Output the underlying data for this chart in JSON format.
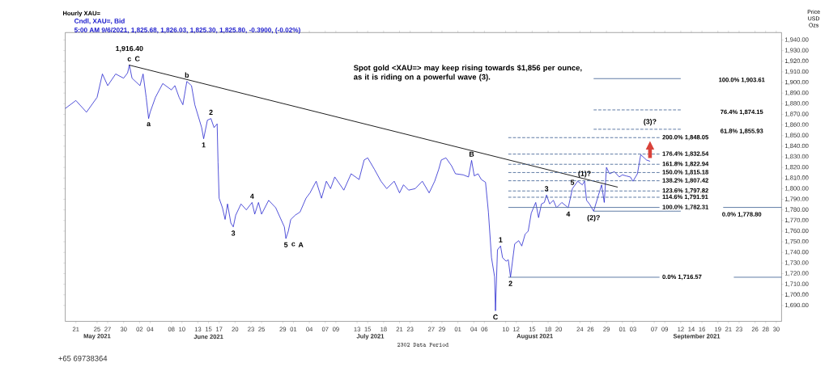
{
  "chart_data": {
    "type": "line",
    "title": "Hourly XAU=",
    "subtitle": "Cndl, XAU=, Bid",
    "ylabel": "Price USD Ozs",
    "xlim": [
      "2021-05-19",
      "2021-10-01"
    ],
    "ylim": [
      1675,
      1947
    ],
    "xticks": [
      {
        "value": "2021-05-21",
        "label": "21"
      },
      {
        "value": "2021-05-25",
        "label": "25"
      },
      {
        "value": "2021-05-27",
        "label": "27"
      },
      {
        "value": "2021-05-30",
        "label": "30"
      },
      {
        "value": "2021-06-02",
        "label": "02"
      },
      {
        "value": "2021-06-04",
        "label": "04"
      },
      {
        "value": "2021-06-08",
        "label": "08"
      },
      {
        "value": "2021-06-10",
        "label": "10"
      },
      {
        "value": "2021-06-13",
        "label": "13"
      },
      {
        "value": "2021-06-15",
        "label": "15"
      },
      {
        "value": "2021-06-17",
        "label": "17"
      },
      {
        "value": "2021-06-20",
        "label": "20"
      },
      {
        "value": "2021-06-23",
        "label": "23"
      },
      {
        "value": "2021-06-25",
        "label": "25"
      },
      {
        "value": "2021-06-29",
        "label": "29"
      },
      {
        "value": "2021-07-01",
        "label": "01"
      },
      {
        "value": "2021-07-04",
        "label": "04"
      },
      {
        "value": "2021-07-07",
        "label": "07"
      },
      {
        "value": "2021-07-09",
        "label": "09"
      },
      {
        "value": "2021-07-13",
        "label": "13"
      },
      {
        "value": "2021-07-15",
        "label": "15"
      },
      {
        "value": "2021-07-18",
        "label": "18"
      },
      {
        "value": "2021-07-21",
        "label": "21"
      },
      {
        "value": "2021-07-23",
        "label": "23"
      },
      {
        "value": "2021-07-27",
        "label": "27"
      },
      {
        "value": "2021-07-29",
        "label": "29"
      },
      {
        "value": "2021-08-01",
        "label": "01"
      },
      {
        "value": "2021-08-04",
        "label": "04"
      },
      {
        "value": "2021-08-06",
        "label": "06"
      },
      {
        "value": "2021-08-10",
        "label": "10"
      },
      {
        "value": "2021-08-12",
        "label": "12"
      },
      {
        "value": "2021-08-15",
        "label": "15"
      },
      {
        "value": "2021-08-18",
        "label": "18"
      },
      {
        "value": "2021-08-20",
        "label": "20"
      },
      {
        "value": "2021-08-24",
        "label": "24"
      },
      {
        "value": "2021-08-26",
        "label": "26"
      },
      {
        "value": "2021-08-29",
        "label": "29"
      },
      {
        "value": "2021-09-01",
        "label": "01"
      },
      {
        "value": "2021-09-03",
        "label": "03"
      },
      {
        "value": "2021-09-07",
        "label": "07"
      },
      {
        "value": "2021-09-09",
        "label": "09"
      },
      {
        "value": "2021-09-12",
        "label": "12"
      },
      {
        "value": "2021-09-14",
        "label": "14"
      },
      {
        "value": "2021-09-16",
        "label": "16"
      },
      {
        "value": "2021-09-19",
        "label": "19"
      },
      {
        "value": "2021-09-21",
        "label": "21"
      },
      {
        "value": "2021-09-23",
        "label": "23"
      },
      {
        "value": "2021-09-26",
        "label": "26"
      },
      {
        "value": "2021-09-28",
        "label": "28"
      },
      {
        "value": "2021-09-30",
        "label": "30"
      }
    ],
    "yticks": [
      {
        "value": 1690,
        "label": "1,690.00"
      },
      {
        "value": 1700,
        "label": "1,700.00"
      },
      {
        "value": 1710,
        "label": "1,710.00"
      },
      {
        "value": 1720,
        "label": "1,720.00"
      },
      {
        "value": 1730,
        "label": "1,730.00"
      },
      {
        "value": 1740,
        "label": "1,740.00"
      },
      {
        "value": 1750,
        "label": "1,750.00"
      },
      {
        "value": 1760,
        "label": "1,760.00"
      },
      {
        "value": 1770,
        "label": "1,770.00"
      },
      {
        "value": 1780,
        "label": "1,780.00"
      },
      {
        "value": 1790,
        "label": "1,790.00"
      },
      {
        "value": 1800,
        "label": "1,800.00"
      },
      {
        "value": 1810,
        "label": "1,810.00"
      },
      {
        "value": 1820,
        "label": "1,820.00"
      },
      {
        "value": 1830,
        "label": "1,830.00"
      },
      {
        "value": 1840,
        "label": "1,840.00"
      },
      {
        "value": 1850,
        "label": "1,850.00"
      },
      {
        "value": 1860,
        "label": "1,860.00"
      },
      {
        "value": 1870,
        "label": "1,870.00"
      },
      {
        "value": 1880,
        "label": "1,880.00"
      },
      {
        "value": 1890,
        "label": "1,890.00"
      },
      {
        "value": 1900,
        "label": "1,900.00"
      },
      {
        "value": 1910,
        "label": "1,910.00"
      },
      {
        "value": 1920,
        "label": "1,920.00"
      },
      {
        "value": 1930,
        "label": "1,930.00"
      },
      {
        "value": 1940,
        "label": "1,940.00"
      }
    ],
    "series": [
      {
        "color": "#1a1acc",
        "x": [
          "2021-05-19T00:00",
          "2021-05-21",
          "2021-05-23",
          "2021-05-25",
          "2021-05-26",
          "2021-05-27",
          "2021-05-28T12:00",
          "2021-05-30",
          "2021-05-30T18:00",
          "2021-05-31T02:00",
          "2021-05-31T14:00",
          "2021-06-02T02:00",
          "2021-06-02T16:00",
          "2021-06-03T06:00",
          "2021-06-03T17:00",
          "2021-06-04",
          "2021-06-05",
          "2021-06-06T09:00",
          "2021-06-08",
          "2021-06-08T16:00",
          "2021-06-09T11:00",
          "2021-06-10T04:00",
          "2021-06-10T22:00",
          "2021-06-11T19:00",
          "2021-06-12T10:00",
          "2021-06-13T17:00",
          "2021-06-14T02:00",
          "2021-06-14T19:00",
          "2021-06-15T11:00",
          "2021-06-16T01:00",
          "2021-06-16T15:00",
          "2021-06-16T19:00",
          "2021-06-17",
          "2021-06-17T15:00",
          "2021-06-18T03:00",
          "2021-06-18T14:00",
          "2021-06-19T05:00",
          "2021-06-19T16:00",
          "2021-06-20T03:00",
          "2021-06-21T03:00",
          "2021-06-22T03:00",
          "2021-06-23T05:00",
          "2021-06-23T17:00",
          "2021-06-24T10:00",
          "2021-06-25",
          "2021-06-26T08:00",
          "2021-06-27T16:00",
          "2021-06-29T07:00",
          "2021-06-29T14:00",
          "2021-06-30T01:00",
          "2021-06-30T12:00",
          "2021-07-01T08:00",
          "2021-07-02T06:00",
          "2021-07-03T09:00",
          "2021-07-04T03:00",
          "2021-07-05T07:00",
          "2021-07-06T07:00",
          "2021-07-07T05:00",
          "2021-07-08",
          "2021-07-08T19:00",
          "2021-07-10T12:00",
          "2021-07-11T21:00",
          "2021-07-13T09:00",
          "2021-07-14T08:00",
          "2021-07-15",
          "2021-07-16T07:00",
          "2021-07-17T12:00",
          "2021-07-18T14:00",
          "2021-07-20",
          "2021-07-21",
          "2021-07-21T18:00",
          "2021-07-22T17:00",
          "2021-07-23T23:00",
          "2021-07-25T07:00",
          "2021-07-26T14:00",
          "2021-07-27T15:00",
          "2021-07-28T09:00",
          "2021-07-28T21:00",
          "2021-07-29T18:00",
          "2021-07-30T19:00",
          "2021-07-31T13:00",
          "2021-08-02",
          "2021-08-03",
          "2021-08-03T14:00",
          "2021-08-04T02:00",
          "2021-08-04T19:00",
          "2021-08-05T10:00",
          "2021-08-06T05:00",
          "2021-08-06T18:00",
          "2021-08-07T08:00",
          "2021-08-07T22:00",
          "2021-08-08T02:00",
          "2021-08-08T11:00",
          "2021-08-09T01:00",
          "2021-08-09T10:00",
          "2021-08-10T02:00",
          "2021-08-10T12:00",
          "2021-08-10T22:00",
          "2021-08-11T07:00",
          "2021-08-11T17:00",
          "2021-08-12T11:00",
          "2021-08-13T01:00",
          "2021-08-13T16:00",
          "2021-08-14T06:00",
          "2021-08-14T20:00",
          "2021-08-15T16:00",
          "2021-08-16T05:00",
          "2021-08-16T18:00",
          "2021-08-17T07:00",
          "2021-08-17T17:00",
          "2021-08-18T07:00",
          "2021-08-19",
          "2021-08-19T14:00",
          "2021-08-20T14:00",
          "2021-08-21T19:00",
          "2021-08-22T14:00",
          "2021-08-23T14:00",
          "2021-08-24T11:00",
          "2021-08-24T21:00",
          "2021-08-25T06:00",
          "2021-08-25T19:00",
          "2021-08-26T14:00",
          "2021-08-27T12:00",
          "2021-08-28T02:00",
          "2021-08-28T14:00",
          "2021-08-29",
          "2021-08-29T14:00",
          "2021-08-30T12:00",
          "2021-08-31T10:00",
          "2021-09-01",
          "2021-09-01T17:00",
          "2021-09-02T12:00",
          "2021-09-03",
          "2021-09-03T20:00",
          "2021-09-04T11:00",
          "2021-09-05T13:00",
          "2021-09-06T05:00"
        ],
        "values": [
          1875.5,
          1883,
          1872,
          1886,
          1908,
          1897,
          1908,
          1904,
          1909,
          1916.4,
          1904,
          1897,
          1908,
          1886,
          1866,
          1872,
          1886,
          1899,
          1893,
          1897,
          1886,
          1879,
          1901,
          1897,
          1879,
          1857.5,
          1847,
          1864.5,
          1866,
          1857.5,
          1861,
          1825,
          1791,
          1782,
          1771,
          1785.6,
          1767.6,
          1764,
          1775,
          1785.6,
          1780,
          1787,
          1776,
          1787,
          1776,
          1789,
          1782,
          1764,
          1753,
          1760,
          1771,
          1775,
          1778,
          1791,
          1796,
          1807,
          1791,
          1807,
          1800,
          1811,
          1798.6,
          1814,
          1808.6,
          1827,
          1829,
          1818,
          1807,
          1800,
          1807,
          1796,
          1803.6,
          1798.6,
          1800,
          1807,
          1796,
          1807,
          1818,
          1827,
          1829,
          1821.6,
          1814,
          1813,
          1811,
          1826.6,
          1812,
          1814,
          1808.6,
          1806,
          1778,
          1735,
          1717,
          1685,
          1742.4,
          1746,
          1735,
          1731.7,
          1733,
          1716.6,
          1731.7,
          1748,
          1751,
          1746,
          1757,
          1760,
          1777,
          1787,
          1772.7,
          1785.6,
          1787,
          1794,
          1785.6,
          1789,
          1782,
          1787,
          1782,
          1800,
          1807,
          1803.6,
          1807,
          1789,
          1785.6,
          1778.8,
          1794,
          1803.6,
          1787,
          1820,
          1814,
          1816,
          1811,
          1813,
          1812,
          1811,
          1807,
          1814,
          1832,
          1827,
          1825.8
        ]
      },
      {
        "color": "#000000",
        "x": [
          "2021-05-31T00:00",
          "2021-08-31T03:00"
        ],
        "values": [
          1916.4,
          1801.4
        ]
      },
      {
        "color": "#4a6a9a",
        "line_style": "dashed",
        "x": [
          "2021-08-10T12:00",
          "2021-09-08"
        ],
        "values": [
          1848.05,
          1848.05
        ]
      },
      {
        "color": "#4a6a9a",
        "line_style": "dashed",
        "x": [
          "2021-08-10T12:00",
          "2021-09-08"
        ],
        "values": [
          1832.54,
          1832.54
        ]
      },
      {
        "color": "#4a6a9a",
        "line_style": "dashed",
        "x": [
          "2021-08-10T12:00",
          "2021-09-08"
        ],
        "values": [
          1822.94,
          1822.94
        ]
      },
      {
        "color": "#4a6a9a",
        "line_style": "dashed",
        "x": [
          "2021-08-10T12:00",
          "2021-09-08"
        ],
        "values": [
          1815.18,
          1815.18
        ]
      },
      {
        "color": "#4a6a9a",
        "line_style": "dashed",
        "x": [
          "2021-08-10T12:00",
          "2021-09-08"
        ],
        "values": [
          1807.42,
          1807.42
        ]
      },
      {
        "color": "#4a6a9a",
        "line_style": "dashed",
        "x": [
          "2021-08-10T12:00",
          "2021-09-08"
        ],
        "values": [
          1797.82,
          1797.82
        ]
      },
      {
        "color": "#4a6a9a",
        "line_style": "dashed",
        "x": [
          "2021-08-10T12:00",
          "2021-09-08"
        ],
        "values": [
          1791.91,
          1791.91
        ]
      },
      {
        "color": "#4a6a9a",
        "line_style": "solid",
        "x": [
          "2021-08-10T12:00",
          "2021-09-08",
          "2021-09-14",
          "2021-09-20",
          "2021-10-01"
        ],
        "values": [
          1782.31,
          1782.31,
          null,
          1782.31,
          1782.31
        ]
      },
      {
        "color": "#4a6a9a",
        "line_style": "solid",
        "x": [
          "2021-08-10T12:00",
          "2021-09-08",
          "2021-09-15",
          "2021-09-22",
          "2021-10-01"
        ],
        "values": [
          1716.57,
          1716.57,
          null,
          1716.57,
          1716.57
        ]
      },
      {
        "color": "#4a6a9a",
        "line_style": "solid",
        "x": [
          "2021-08-26T14:00",
          "2021-09-12"
        ],
        "values": [
          1903.61,
          1903.61
        ]
      },
      {
        "color": "#4a6a9a",
        "line_style": "dashed",
        "x": [
          "2021-08-26T14:00",
          "2021-09-12"
        ],
        "values": [
          1874.15,
          1874.15
        ]
      },
      {
        "color": "#4a6a9a",
        "line_style": "dashed",
        "x": [
          "2021-08-26T14:00",
          "2021-09-12"
        ],
        "values": [
          1855.93,
          1855.93
        ]
      },
      {
        "color": "#4a6a9a",
        "line_style": "solid",
        "x": [
          "2021-08-26T14:00",
          "2021-09-12"
        ],
        "values": [
          1778.8,
          1778.8
        ]
      }
    ],
    "annotations": [
      "5:00 AM 9/6/2021, 1,825.68, 1,826.03, 1,825.30, 1,825.80, -0.3900, (-0.02%)",
      "Spot gold <XAU=> may keep rising towards $1,856 per ounce, as it is riding on a powerful wave (3).",
      "2302 Data Period",
      "+65 69738364",
      "May 2021",
      "June 2021",
      "July 2021",
      "August 2021",
      "September 2021",
      "100.0% 1,903.61",
      "76.4% 1,874.15",
      "61.8% 1,855.93",
      "0.0% 1,778.80",
      {
        "text": "200.0% 1,848.05",
        "x": "2021-09-08",
        "y": 1848.05
      },
      {
        "text": "176.4% 1,832.54",
        "x": "2021-09-08",
        "y": 1832.54
      },
      {
        "text": "161.8% 1,822.94",
        "x": "2021-09-08",
        "y": 1822.94
      },
      {
        "text": "150.0% 1,815.18",
        "x": "2021-09-08",
        "y": 1815.18
      },
      {
        "text": "138.2% 1,807.42",
        "x": "2021-09-08",
        "y": 1807.42
      },
      {
        "text": "123.6% 1,797.82",
        "x": "2021-09-08",
        "y": 1797.82
      },
      {
        "text": "114.6% 1,791.91",
        "x": "2021-09-08",
        "y": 1791.91
      },
      {
        "text": "100.0% 1,782.31",
        "x": "2021-09-08",
        "y": 1782.31
      },
      {
        "text": "0.0% 1,716.57",
        "x": "2021-09-08",
        "y": 1716.57
      },
      {
        "text": "c",
        "x": "2021-05-31T02:00",
        "y": 1916.4
      },
      {
        "text": "C",
        "x": "2021-05-31T02:00",
        "y": 1916.4
      },
      {
        "text": "1,916.40",
        "x": "2021-05-31T02:00",
        "y": 1916.4
      },
      {
        "text": "a",
        "x": "2021-06-03T17:00",
        "y": 1866
      },
      {
        "text": "b",
        "x": "2021-06-10T22:00",
        "y": 1901
      },
      {
        "text": "1",
        "x": "2021-06-14T02:00",
        "y": 1847
      },
      {
        "text": "2",
        "x": "2021-06-15T11:00",
        "y": 1866
      },
      {
        "text": "3",
        "x": "2021-06-19T16:00",
        "y": 1764
      },
      {
        "text": "4",
        "x": "2021-06-23T05:00",
        "y": 1787
      },
      {
        "text": "5",
        "x": "2021-06-29T14:00",
        "y": 1753
      },
      {
        "text": "c",
        "x": "2021-06-29T14:00",
        "y": 1753
      },
      {
        "text": "A",
        "x": "2021-06-29T14:00",
        "y": 1753
      },
      {
        "text": "B",
        "x": "2021-08-03T14:00",
        "y": 1826.6
      },
      {
        "text": "C",
        "x": "2021-08-08T02:00",
        "y": 1685
      },
      {
        "text": "1",
        "x": "2021-08-09T01:00",
        "y": 1746
      },
      {
        "text": "2",
        "x": "2021-08-10T22:00",
        "y": 1716.6
      },
      {
        "text": "3",
        "x": "2021-08-17T17:00",
        "y": 1794
      },
      {
        "text": "4",
        "x": "2021-08-21T19:00",
        "y": 1782
      },
      {
        "text": "5",
        "x": "2021-08-22T14:00",
        "y": 1800
      },
      {
        "text": "(1)?",
        "x": "2021-08-24T21:00",
        "y": 1807
      },
      {
        "text": "(2)?",
        "x": "2021-08-26T14:00",
        "y": 1778.8
      },
      {
        "text": "(3)?",
        "x": "2021-09-06T05:00",
        "y": 1855.93
      }
    ]
  }
}
